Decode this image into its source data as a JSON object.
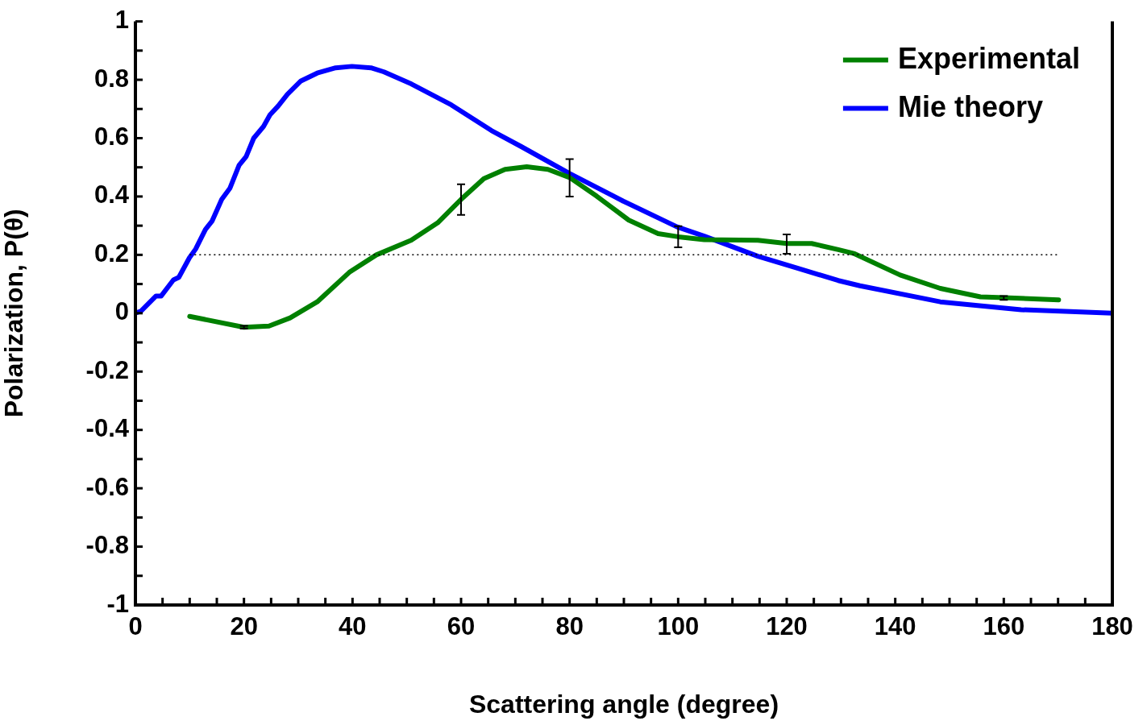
{
  "chart_data": {
    "type": "line",
    "xlabel": "Scattering angle (degree)",
    "ylabel": "Polarization, P(θ)",
    "xlim": [
      0,
      180
    ],
    "ylim": [
      -1,
      1
    ],
    "xticks": [
      0,
      {
        "value": 5,
        "label": null
      },
      {
        "value": 10,
        "label": null
      },
      {
        "value": 15,
        "label": null
      },
      20,
      {
        "value": 25,
        "label": null
      },
      {
        "value": 30,
        "label": null
      },
      {
        "value": 35,
        "label": null
      },
      40,
      {
        "value": 45,
        "label": null
      },
      {
        "value": 50,
        "label": null
      },
      {
        "value": 55,
        "label": null
      },
      60,
      {
        "value": 65,
        "label": null
      },
      {
        "value": 70,
        "label": null
      },
      {
        "value": 75,
        "label": null
      },
      80,
      {
        "value": 85,
        "label": null
      },
      {
        "value": 90,
        "label": null
      },
      {
        "value": 95,
        "label": null
      },
      100,
      {
        "value": 105,
        "label": null
      },
      {
        "value": 110,
        "label": null
      },
      {
        "value": 115,
        "label": null
      },
      120,
      {
        "value": 125,
        "label": null
      },
      {
        "value": 130,
        "label": null
      },
      {
        "value": 135,
        "label": null
      },
      140,
      {
        "value": 145,
        "label": null
      },
      {
        "value": 150,
        "label": null
      },
      {
        "value": 155,
        "label": null
      },
      160,
      {
        "value": 165,
        "label": null
      },
      {
        "value": 170,
        "label": null
      },
      {
        "value": 175,
        "label": null
      },
      180
    ],
    "yticks": [
      -1,
      {
        "value": -0.9,
        "label": null
      },
      -0.8,
      {
        "value": -0.7,
        "label": null
      },
      -0.6,
      {
        "value": -0.5,
        "label": null
      },
      -0.4,
      {
        "value": -0.3,
        "label": null
      },
      -0.2,
      {
        "value": -0.1,
        "label": null
      },
      0,
      {
        "value": 0.1,
        "label": null
      },
      0.2,
      {
        "value": 0.3,
        "label": null
      },
      0.4,
      {
        "value": 0.5,
        "label": null
      },
      0.6,
      {
        "value": 0.7,
        "label": null
      },
      0.8,
      {
        "value": 0.9,
        "label": null
      },
      1
    ],
    "grid": false,
    "legend": "top right",
    "marker": "none",
    "line_style": "solid",
    "ref_lines": [
      {
        "axis": "y",
        "value": 0.2,
        "color": "#000000",
        "line_style": "dotted"
      }
    ],
    "series": [
      {
        "name": "Experimental",
        "color": "#008000",
        "x": [
          10,
          20,
          24.6,
          28.5,
          33.5,
          39.4,
          44.4,
          50.8,
          55.7,
          60,
          64.2,
          68.1,
          72.1,
          76,
          80,
          85,
          90.9,
          96.3,
          100,
          104.8,
          114.7,
          120,
          124.6,
          129.5,
          132.5,
          140.9,
          148.3,
          155.7,
          160,
          170.1
        ],
        "values": [
          -0.011,
          -0.048,
          -0.044,
          -0.016,
          0.039,
          0.14,
          0.2,
          0.25,
          0.31,
          0.39,
          0.461,
          0.493,
          0.502,
          0.493,
          0.465,
          0.401,
          0.319,
          0.273,
          0.262,
          0.252,
          0.25,
          0.239,
          0.239,
          0.218,
          0.204,
          0.131,
          0.085,
          0.056,
          0.053,
          0.046
        ],
        "errors": [
          null,
          [
            -0.052,
            -0.043
          ],
          null,
          null,
          null,
          null,
          null,
          null,
          null,
          [
            0.337,
            0.442
          ],
          null,
          null,
          null,
          null,
          [
            0.4,
            0.528
          ],
          null,
          null,
          null,
          [
            0.226,
            0.298
          ],
          null,
          null,
          [
            0.204,
            0.27
          ],
          null,
          null,
          null,
          null,
          null,
          null,
          [
            0.046,
            0.059
          ],
          null
        ]
      },
      {
        "name": "Mie theory",
        "color": "#0000ff",
        "x": [
          0,
          1,
          3.8,
          4.75,
          7,
          8,
          9.95,
          11.1,
          12.9,
          14.1,
          15.9,
          17.4,
          19.1,
          20.4,
          21.8,
          23.6,
          24.8,
          26.3,
          28,
          30.5,
          33.5,
          36.9,
          39.9,
          43.4,
          45.8,
          50.8,
          58.2,
          65.6,
          71.1,
          80,
          89.9,
          99.8,
          104.8,
          114.7,
          122.1,
          129.5,
          133.5,
          148.3,
          163.2,
          180
        ],
        "values": [
          0,
          0.007,
          0.059,
          0.059,
          0.114,
          0.123,
          0.19,
          0.22,
          0.287,
          0.315,
          0.39,
          0.428,
          0.507,
          0.537,
          0.6,
          0.64,
          0.68,
          0.71,
          0.75,
          0.796,
          0.823,
          0.841,
          0.846,
          0.841,
          0.827,
          0.786,
          0.714,
          0.626,
          0.571,
          0.479,
          0.384,
          0.296,
          0.264,
          0.195,
          0.154,
          0.112,
          0.094,
          0.039,
          0.012,
          0
        ]
      }
    ]
  }
}
